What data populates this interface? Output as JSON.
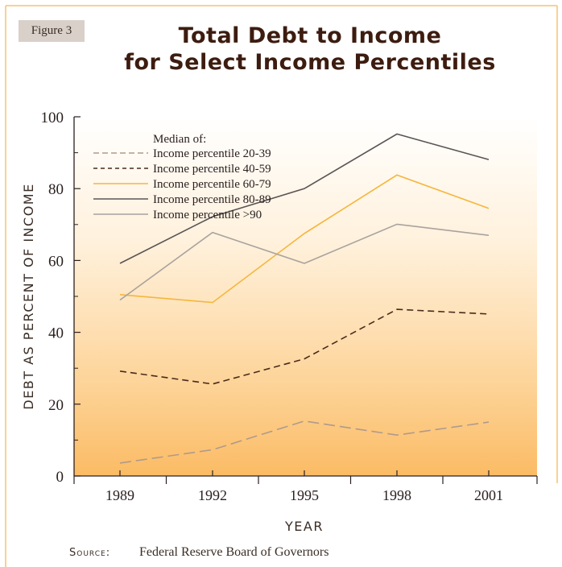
{
  "figure_label": "Figure 3",
  "source_prefix": "Source:",
  "source_text": "Federal Reserve Board of Governors",
  "chart_data": {
    "type": "line",
    "title": "Total Debt to Income\nfor Select Income Percentiles",
    "title_lines": [
      "Total Debt to Income",
      "for Select Income Percentiles"
    ],
    "xlabel": "YEAR",
    "ylabel": "DEBT AS PERCENT OF INCOME",
    "x": [
      "1989",
      "1992",
      "1995",
      "1998",
      "2001"
    ],
    "ylim": [
      0,
      100
    ],
    "yticks": [
      "0",
      "20",
      "40",
      "60",
      "80",
      "100"
    ],
    "legend_title": "Median of:",
    "legend_position": "top-left",
    "background": "orange vertical gradient",
    "series": [
      {
        "name": "Income percentile 20-39",
        "values": [
          3.6,
          7.3,
          15.3,
          11.4,
          15.0
        ],
        "color": "#b09a8c",
        "dash": "long-dash"
      },
      {
        "name": "Income percentile 40-59",
        "values": [
          29.2,
          25.6,
          32.6,
          46.4,
          45.1
        ],
        "color": "#4a2a1a",
        "dash": "dash"
      },
      {
        "name": "Income percentile 60-79",
        "values": [
          50.5,
          48.3,
          67.5,
          83.8,
          74.5
        ],
        "color": "#f5b63c",
        "dash": "solid"
      },
      {
        "name": "Income percentile 80-89",
        "values": [
          59.2,
          72.2,
          80.0,
          95.2,
          88.1
        ],
        "color": "#5a5555",
        "dash": "solid"
      },
      {
        "name": "Income percentile >90",
        "values": [
          49.0,
          67.8,
          59.2,
          70.1,
          67.0
        ],
        "color": "#a9a29d",
        "dash": "solid"
      }
    ]
  }
}
